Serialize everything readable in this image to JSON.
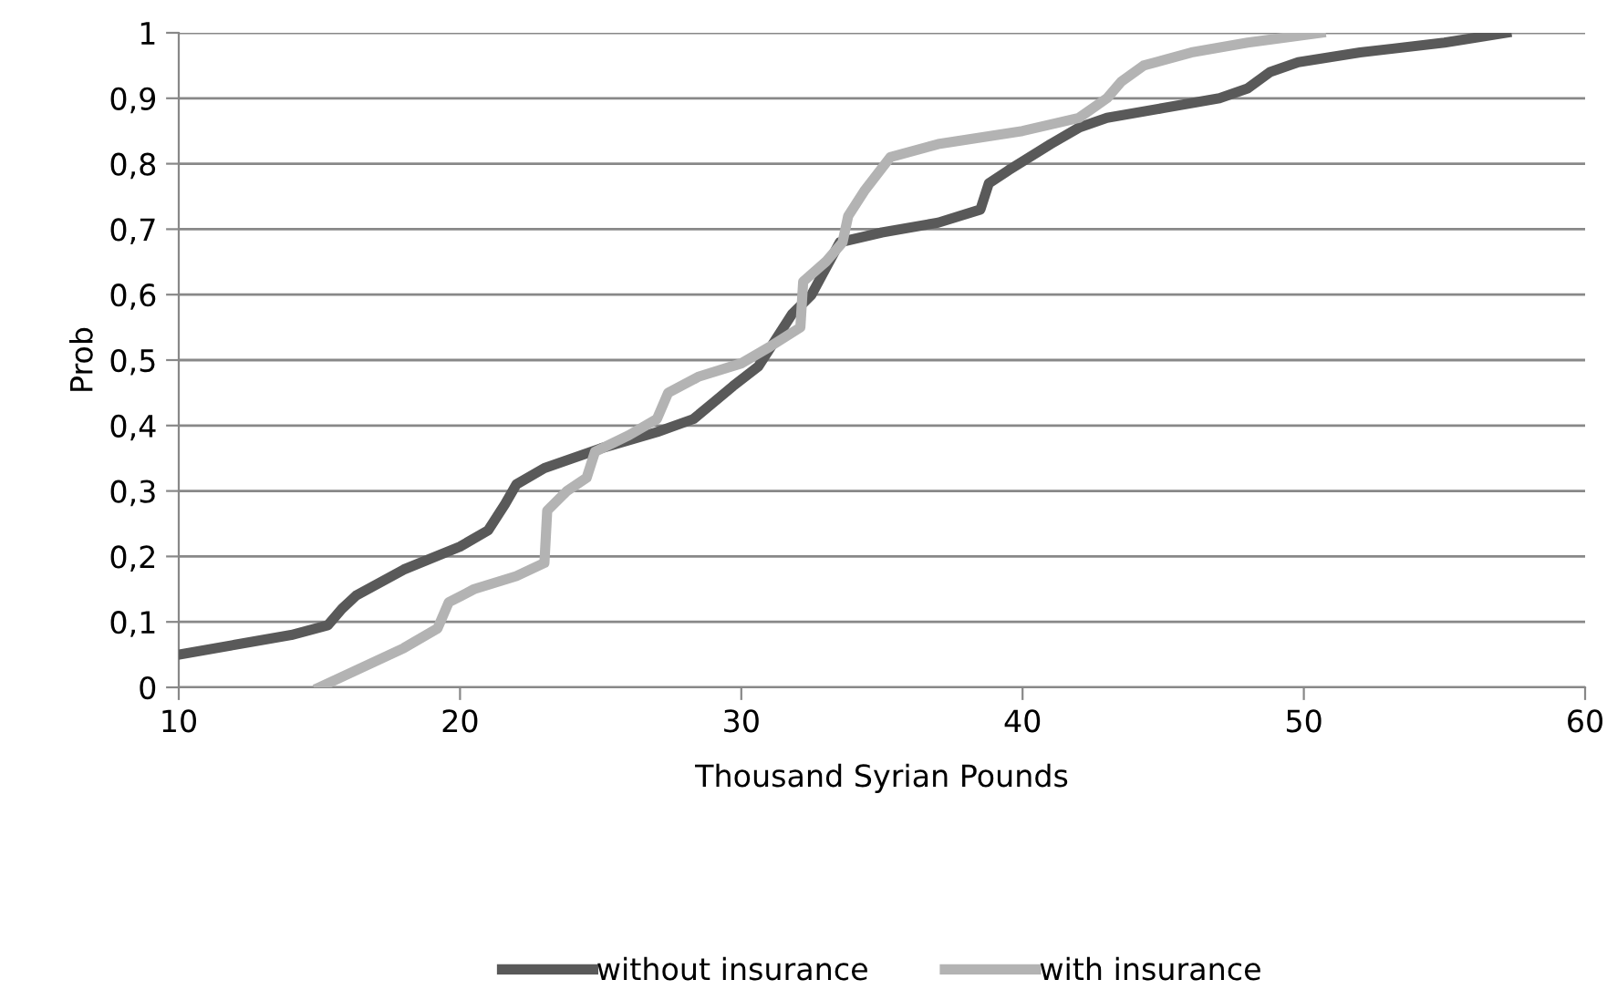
{
  "chart_data": {
    "type": "line",
    "xlabel": "Thousand Syrian Pounds",
    "ylabel": "Prob",
    "xlim": [
      10,
      60
    ],
    "xticks": [
      10,
      20,
      30,
      40,
      50,
      60
    ],
    "ylim": [
      0,
      1
    ],
    "yticks": [
      {
        "value": 0,
        "label": "0"
      },
      {
        "value": 0.1,
        "label": "0,1"
      },
      {
        "value": 0.2,
        "label": "0,2"
      },
      {
        "value": 0.3,
        "label": "0,3"
      },
      {
        "value": 0.4,
        "label": "0,4"
      },
      {
        "value": 0.5,
        "label": "0,5"
      },
      {
        "value": 0.6,
        "label": "0,6"
      },
      {
        "value": 0.7,
        "label": "0,7"
      },
      {
        "value": 0.8,
        "label": "0,8"
      },
      {
        "value": 0.9,
        "label": "0,9"
      },
      {
        "value": 1,
        "label": "1"
      }
    ],
    "grid": "y",
    "legend": "bottom",
    "marker": "none",
    "line_style": "solid",
    "series": [
      {
        "name": "without insurance",
        "color": "#595959",
        "x": [
          10,
          12,
          14,
          15.3,
          15.8,
          16.3,
          18,
          20,
          21,
          21.6,
          22,
          23,
          25,
          27,
          28.3,
          29,
          29.7,
          30.6,
          31.2,
          31.8,
          32.5,
          33,
          33.5,
          35,
          37,
          38.5,
          38.8,
          39.5,
          41,
          42,
          43,
          45,
          47,
          48,
          48.8,
          49.8,
          52,
          55,
          57.2
        ],
        "values": [
          0.05,
          0.065,
          0.08,
          0.095,
          0.12,
          0.14,
          0.18,
          0.215,
          0.24,
          0.28,
          0.31,
          0.335,
          0.365,
          0.39,
          0.41,
          0.435,
          0.46,
          0.49,
          0.53,
          0.57,
          0.6,
          0.64,
          0.68,
          0.695,
          0.71,
          0.73,
          0.77,
          0.79,
          0.83,
          0.855,
          0.87,
          0.885,
          0.9,
          0.915,
          0.94,
          0.955,
          0.97,
          0.985,
          1.0
        ]
      },
      {
        "name": "with insurance",
        "color": "#b3b3b3",
        "x": [
          15,
          16.5,
          18,
          19.2,
          19.6,
          20.5,
          22,
          23,
          23.1,
          23.8,
          24.5,
          24.8,
          26,
          27,
          27.4,
          28.5,
          30,
          31,
          32.1,
          32.2,
          33,
          33.6,
          33.8,
          34.4,
          35.3,
          37,
          40,
          42,
          43,
          43.5,
          44.3,
          46,
          48,
          50.6
        ],
        "values": [
          0,
          0.03,
          0.06,
          0.09,
          0.13,
          0.15,
          0.17,
          0.19,
          0.27,
          0.3,
          0.32,
          0.36,
          0.385,
          0.41,
          0.45,
          0.475,
          0.495,
          0.52,
          0.55,
          0.62,
          0.65,
          0.68,
          0.72,
          0.76,
          0.81,
          0.83,
          0.85,
          0.87,
          0.9,
          0.925,
          0.95,
          0.97,
          0.985,
          1.0
        ]
      }
    ]
  }
}
